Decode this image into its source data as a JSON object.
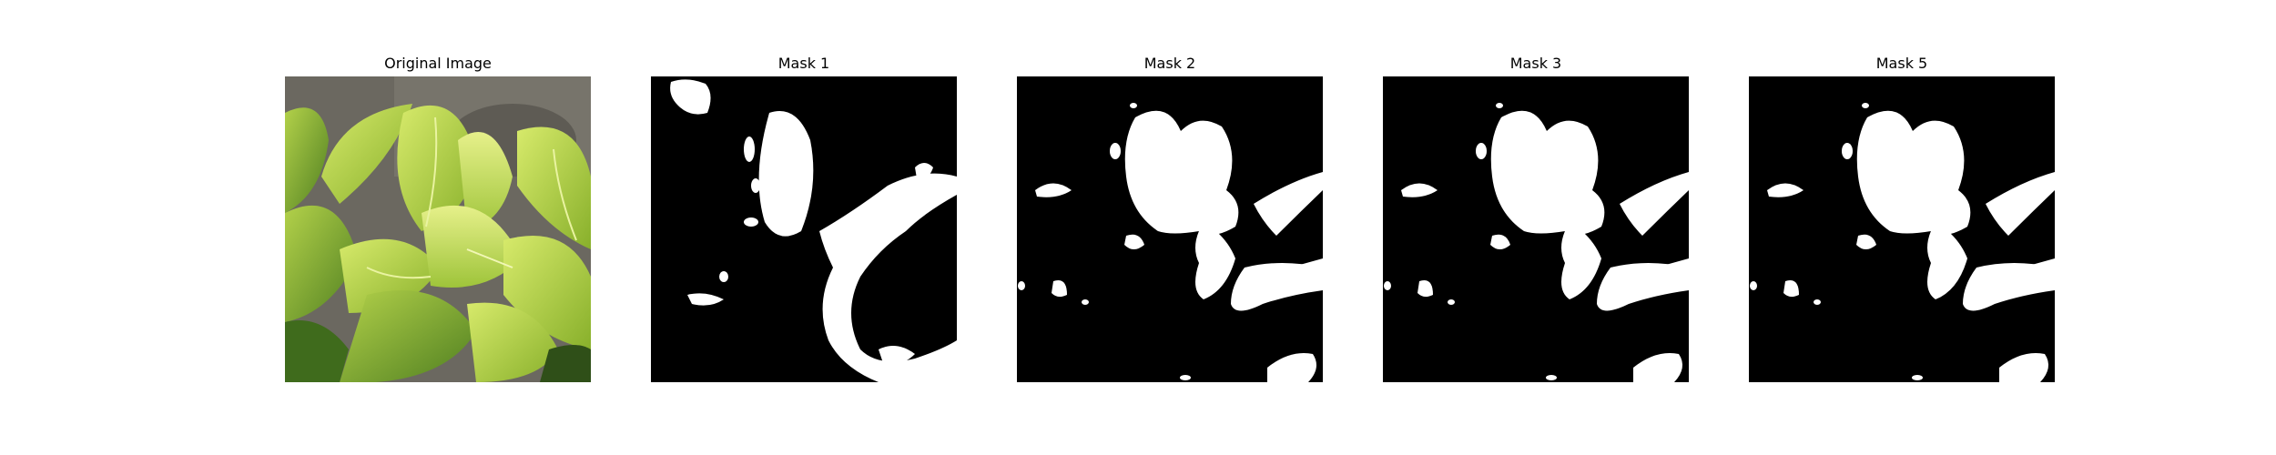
{
  "panels": [
    {
      "title": "Original Image",
      "kind": "photo"
    },
    {
      "title": "Mask 1",
      "kind": "mask"
    },
    {
      "title": "Mask 2",
      "kind": "mask"
    },
    {
      "title": "Mask 3",
      "kind": "mask"
    },
    {
      "title": "Mask 5",
      "kind": "mask"
    }
  ],
  "colors": {
    "background": "#ffffff",
    "mask_background": "#000000",
    "mask_foreground": "#ffffff",
    "leaf_light": "#c9e05a",
    "leaf_mid": "#8fb82e",
    "leaf_dark": "#3f6b1c",
    "wall": "#6b6860"
  }
}
